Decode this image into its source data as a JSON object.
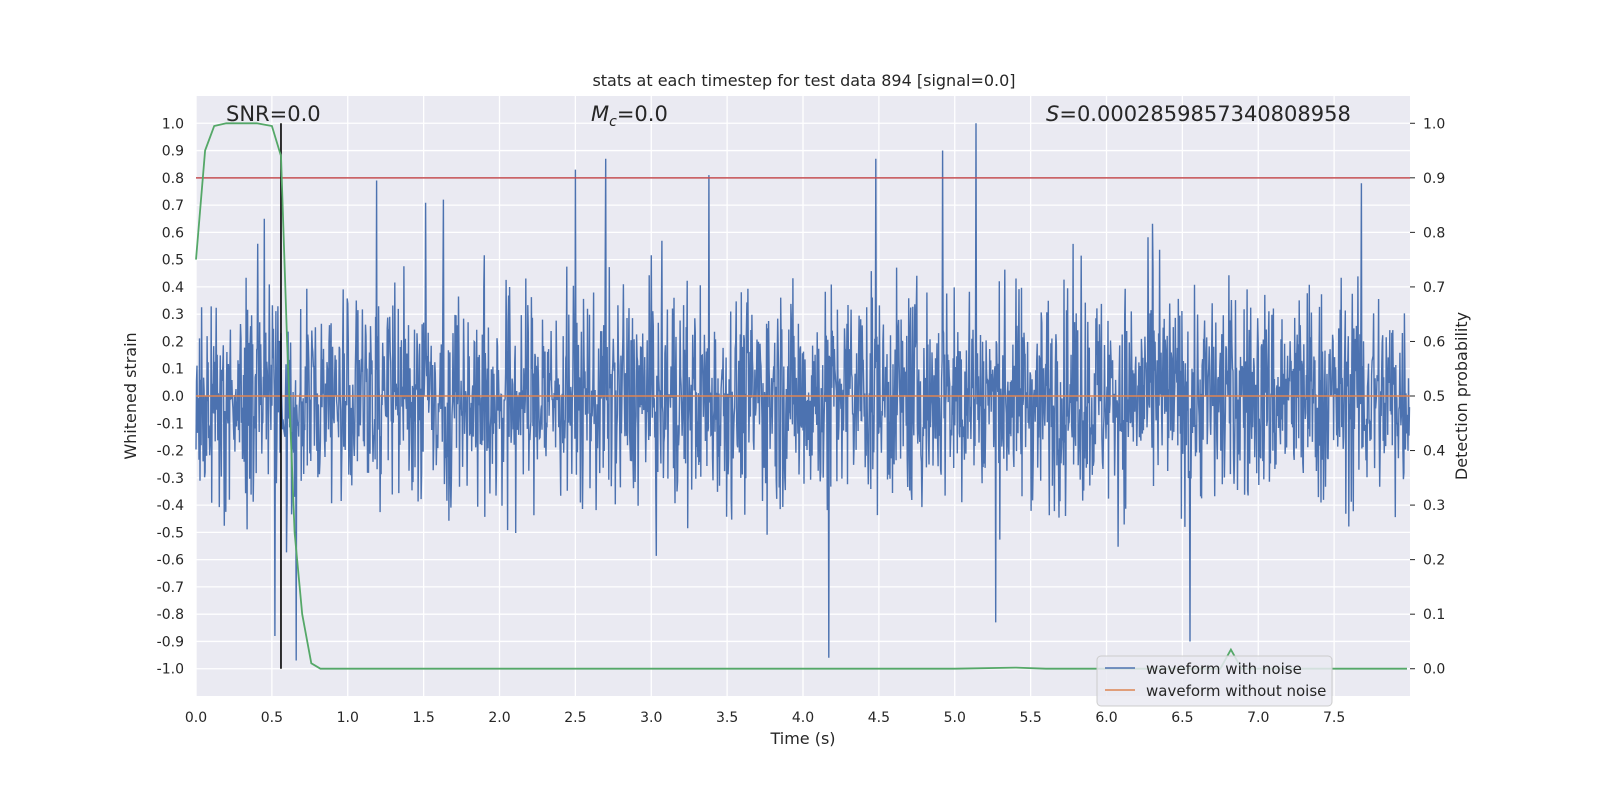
{
  "chart_data": {
    "type": "line",
    "title": "stats at each timestep for test data 894 [signal=0.0]",
    "xlabel": "Time (s)",
    "ylabel": "Whitened strain",
    "y2label": "Detection probability",
    "xlim": [
      0.0,
      8.0
    ],
    "ylim": [
      -1.1,
      1.1
    ],
    "y2lim": [
      -0.05,
      1.05
    ],
    "xticks": [
      "0.0",
      "0.5",
      "1.0",
      "1.5",
      "2.0",
      "2.5",
      "3.0",
      "3.5",
      "4.0",
      "4.5",
      "5.0",
      "5.5",
      "6.0",
      "6.5",
      "7.0",
      "7.5"
    ],
    "yticks": [
      "1.0",
      "0.9",
      "0.8",
      "0.7",
      "0.6",
      "0.5",
      "0.4",
      "0.3",
      "0.2",
      "0.1",
      "0.0",
      "-0.1",
      "-0.2",
      "-0.3",
      "-0.4",
      "-0.5",
      "-0.6",
      "-0.7",
      "-0.8",
      "-0.9",
      "-1.0"
    ],
    "y2ticks": [
      "1.0",
      "0.9",
      "0.8",
      "0.7",
      "0.6",
      "0.5",
      "0.4",
      "0.3",
      "0.2",
      "0.1",
      "0.0"
    ],
    "annotations": {
      "snr": "SNR=0.0",
      "mc_symbol": "M",
      "mc_sub": "c",
      "mc_value": "=0.0",
      "s_symbol": "S",
      "s_value": "=0.0002859857340808958"
    },
    "threshold": 0.9,
    "marker_time": 0.56,
    "series": [
      {
        "name": "waveform with noise",
        "color": "#4c72b0",
        "axis": "left",
        "description": "dense whitened noise, typical amplitude about ±0.4 with peaks near ±1.0",
        "peaks": [
          {
            "x": 0.45,
            "y": 0.65
          },
          {
            "x": 0.52,
            "y": -0.88
          },
          {
            "x": 0.66,
            "y": -0.97
          },
          {
            "x": 1.19,
            "y": 0.79
          },
          {
            "x": 1.63,
            "y": 0.72
          },
          {
            "x": 2.5,
            "y": 0.83
          },
          {
            "x": 2.7,
            "y": 0.87
          },
          {
            "x": 3.38,
            "y": 0.81
          },
          {
            "x": 4.17,
            "y": -0.96
          },
          {
            "x": 4.48,
            "y": 0.87
          },
          {
            "x": 4.92,
            "y": 0.9
          },
          {
            "x": 5.14,
            "y": 1.0
          },
          {
            "x": 5.27,
            "y": -0.83
          },
          {
            "x": 6.55,
            "y": -0.9
          },
          {
            "x": 7.68,
            "y": 0.78
          }
        ]
      },
      {
        "name": "waveform without noise",
        "color": "#dd8452",
        "axis": "left",
        "x": [
          0.0,
          8.0
        ],
        "y": [
          0.0,
          0.0
        ]
      },
      {
        "name": "detection probability",
        "color": "#55a868",
        "axis": "right",
        "x": [
          0.0,
          0.06,
          0.12,
          0.2,
          0.3,
          0.4,
          0.5,
          0.56,
          0.6,
          0.65,
          0.7,
          0.76,
          0.82,
          1.0,
          2.0,
          3.0,
          4.0,
          5.0,
          5.4,
          5.6,
          6.0,
          6.5,
          6.75,
          6.82,
          6.89,
          7.0,
          7.5,
          7.98
        ],
        "y": [
          0.75,
          0.95,
          0.995,
          1.0,
          1.0,
          1.0,
          0.995,
          0.94,
          0.6,
          0.25,
          0.1,
          0.01,
          0.0,
          0.0,
          0.0,
          0.0,
          0.0,
          0.0,
          0.002,
          0.0,
          0.0,
          0.0,
          0.0,
          0.035,
          0.0,
          0.0,
          0.0,
          0.0
        ]
      }
    ],
    "legend": {
      "placement": "lower-right",
      "entries": [
        {
          "label": "waveform with noise",
          "color": "#4c72b0"
        },
        {
          "label": "waveform without noise",
          "color": "#dd8452"
        }
      ]
    },
    "colors": {
      "background": "#eaeaf2",
      "grid": "#ffffff",
      "threshold": "#c44e52",
      "marker": "#000000"
    }
  }
}
